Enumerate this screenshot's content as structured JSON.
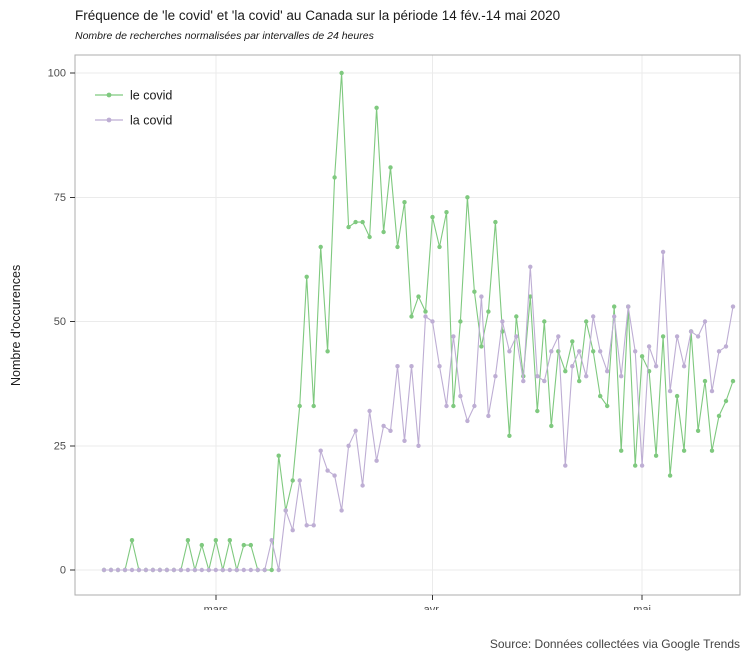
{
  "title": "Fréquence de 'le covid' et 'la covid' au Canada sur la période 14 fév.-14 mai 2020",
  "subtitle": "Nombre de recherches normalisées par intervalles de 24 heures",
  "caption": "Source: Données collectées via Google Trends",
  "y_axis_label": "Nombre d'occurences",
  "colors": {
    "le_covid": "#7FC97F",
    "la_covid": "#BEAED4",
    "grid": "#EBEBEB",
    "panel_border": "#ADADAD",
    "tick_mark": "#333333",
    "tick_text": "#4D4D4D",
    "legend_text": "#1a1a1a"
  },
  "chart_data": {
    "type": "line",
    "title": "Fréquence de 'le covid' et 'la covid' au Canada sur la période 14 fév.-14 mai 2020",
    "subtitle": "Nombre de recherches normalisées par intervalles de 24 heures",
    "xlabel": "",
    "ylabel": "Nombre d'occurences",
    "ylim": [
      0,
      100
    ],
    "y_ticks": [
      0,
      25,
      50,
      75,
      100
    ],
    "grid": true,
    "legend_position": "top-left-inside",
    "x_unit": "days since 2020-02-14",
    "x_start_date": "2020-02-14",
    "x_end_date": "2020-05-14",
    "n_points": 91,
    "x_tick_labels": [
      "mars",
      "avr.",
      "mai"
    ],
    "x_tick_days": [
      16,
      47,
      77
    ],
    "series": [
      {
        "name": "le covid",
        "color": "#7FC97F",
        "values": [
          0,
          0,
          0,
          0,
          6,
          0,
          0,
          0,
          0,
          0,
          0,
          0,
          6,
          0,
          5,
          0,
          6,
          0,
          6,
          0,
          5,
          5,
          0,
          0,
          0,
          23,
          12,
          18,
          33,
          59,
          33,
          65,
          44,
          79,
          100,
          69,
          70,
          70,
          67,
          93,
          68,
          81,
          65,
          74,
          51,
          55,
          52,
          71,
          65,
          72,
          33,
          50,
          75,
          56,
          45,
          52,
          70,
          48,
          27,
          51,
          39,
          55,
          32,
          50,
          29,
          44,
          40,
          46,
          38,
          50,
          44,
          35,
          33,
          53,
          24,
          53,
          21,
          43,
          40,
          23,
          47,
          19,
          35,
          24,
          48,
          28,
          38,
          24,
          31,
          34,
          38
        ]
      },
      {
        "name": "la covid",
        "color": "#BEAED4",
        "values": [
          0,
          0,
          0,
          0,
          0,
          0,
          0,
          0,
          0,
          0,
          0,
          0,
          0,
          0,
          0,
          0,
          0,
          0,
          0,
          0,
          0,
          0,
          0,
          0,
          6,
          0,
          12,
          8,
          18,
          9,
          9,
          24,
          20,
          19,
          12,
          25,
          28,
          17,
          32,
          22,
          29,
          28,
          41,
          26,
          41,
          25,
          51,
          50,
          41,
          33,
          47,
          35,
          30,
          33,
          55,
          31,
          39,
          50,
          44,
          47,
          38,
          61,
          39,
          38,
          44,
          47,
          21,
          41,
          44,
          39,
          51,
          44,
          40,
          51,
          39,
          53,
          44,
          21,
          45,
          41,
          64,
          36,
          47,
          41,
          48,
          47,
          50,
          36,
          44,
          45,
          53
        ]
      }
    ]
  }
}
